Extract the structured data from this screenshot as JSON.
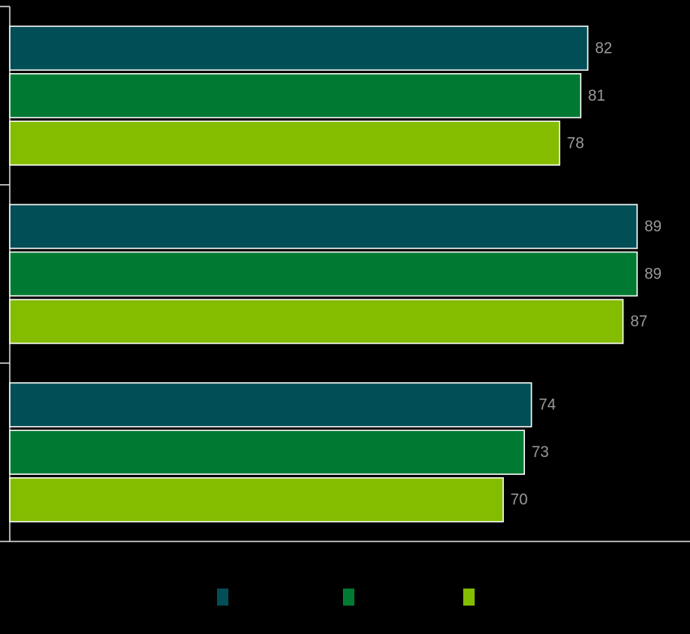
{
  "chart_data": {
    "type": "hbar",
    "categories": [
      null,
      null,
      null
    ],
    "series": [
      {
        "color": "#024e57",
        "values": [
          82,
          89,
          74
        ]
      },
      {
        "color": "#007a33",
        "values": [
          81,
          89,
          73
        ]
      },
      {
        "color": "#84bc00",
        "values": [
          78,
          87,
          70
        ]
      }
    ],
    "xlim": [
      0,
      96.5
    ]
  }
}
